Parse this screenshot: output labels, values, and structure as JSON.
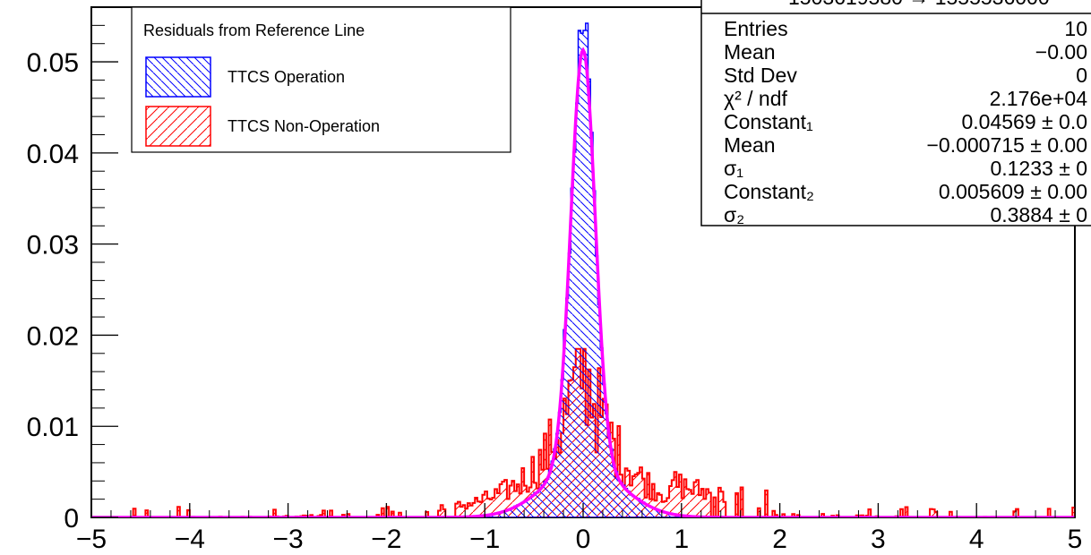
{
  "chart_data": {
    "type": "histogram",
    "x_range": [
      -5,
      5
    ],
    "y_range": [
      0,
      0.056
    ],
    "x_ticks": [
      "−5",
      "−4",
      "−3",
      "−2",
      "−1",
      "0",
      "1",
      "2",
      "3",
      "4",
      "5"
    ],
    "x_tick_values": [
      -5,
      -4,
      -3,
      -2,
      -1,
      0,
      1,
      2,
      3,
      4,
      5
    ],
    "y_ticks": [
      "0",
      "0.01",
      "0.02",
      "0.03",
      "0.04",
      "0.05"
    ],
    "y_tick_values": [
      0,
      0.01,
      0.02,
      0.03,
      0.04,
      0.05
    ],
    "legend": {
      "title": "Residuals from Reference Line",
      "placement": "top-left",
      "entries": [
        {
          "label": "TTCS Operation",
          "color": "#0000ff",
          "hatch": "diagonal-back"
        },
        {
          "label": "TTCS Non-Operation",
          "color": "#ff0000",
          "hatch": "diagonal-forward"
        }
      ]
    },
    "stats_box": {
      "header_partial": "1503619580 → 1555536000",
      "placement": "top-right",
      "rows": [
        {
          "name": "Entries",
          "value": "10"
        },
        {
          "name": "Mean",
          "value": "−0.00"
        },
        {
          "name": "Std Dev",
          "value": "0"
        },
        {
          "name": "χ² / ndf",
          "value": "2.176e+04"
        },
        {
          "name": "Constant₁",
          "value": "0.04569 ± 0.0"
        },
        {
          "name": "Mean",
          "value": "−0.000715 ± 0.00"
        },
        {
          "name": "σ₁",
          "value": "0.1233 ± 0"
        },
        {
          "name": "Constant₂",
          "value": "0.005609 ± 0.00"
        },
        {
          "name": "σ₂",
          "value": "0.3884 ± 0"
        }
      ]
    },
    "fit": {
      "color": "#ff00ff",
      "model": "double-gaussian",
      "constant_1": 0.04569,
      "mean": -0.000715,
      "sigma_1": 0.1233,
      "constant_2": 0.005609,
      "sigma_2": 0.3884
    },
    "series": [
      {
        "name": "TTCS Operation",
        "color": "#0000ff",
        "shape": "approx. double-gaussian core",
        "peak": 0.0543
      },
      {
        "name": "TTCS Non-Operation",
        "color": "#ff0000",
        "shape": "broad noisy distribution",
        "peak": 0.0185
      }
    ]
  }
}
